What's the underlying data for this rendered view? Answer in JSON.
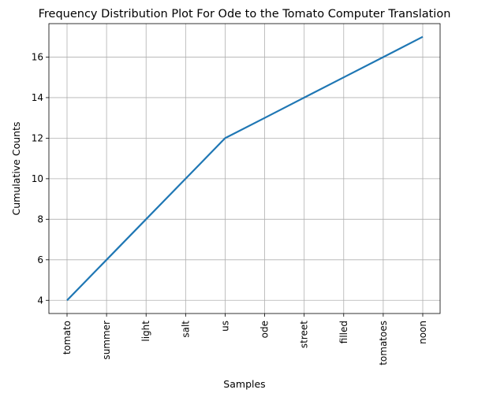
{
  "chart_data": {
    "type": "line",
    "title": "Frequency Distribution Plot For Ode to the Tomato Computer Translation",
    "xlabel": "Samples",
    "ylabel": "Cumulative Counts",
    "categories": [
      "tomato",
      "summer",
      "light",
      "salt",
      "us",
      "ode",
      "street",
      "filled",
      "tomatoes",
      "noon"
    ],
    "values": [
      4,
      6,
      8,
      10,
      12,
      13,
      14,
      15,
      16,
      17
    ],
    "yticks": [
      4,
      6,
      8,
      10,
      12,
      14,
      16
    ],
    "ylim": [
      3.35,
      17.65
    ],
    "grid": true,
    "line_color": "#1f77b4",
    "grid_color": "#b0b0b0"
  }
}
